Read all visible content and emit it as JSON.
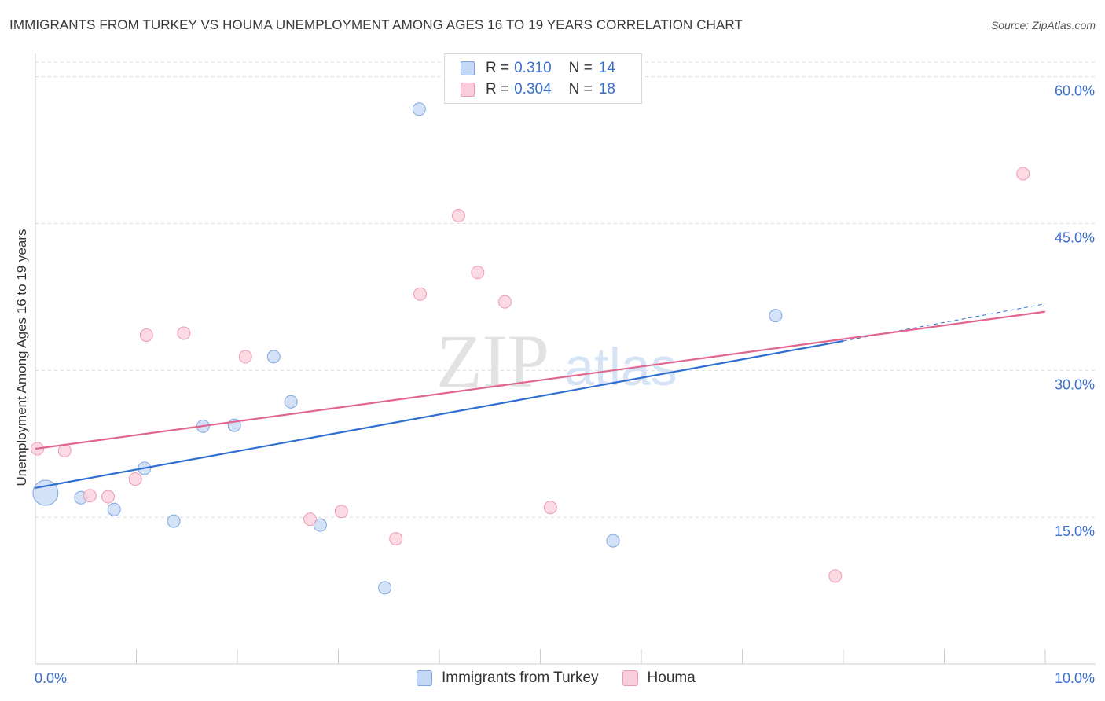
{
  "title": "IMMIGRANTS FROM TURKEY VS HOUMA UNEMPLOYMENT AMONG AGES 16 TO 19 YEARS CORRELATION CHART",
  "source": "Source: ZipAtlas.com",
  "watermark": {
    "zip": "ZIP",
    "atlas": "atlas"
  },
  "legend": {
    "rows": [
      {
        "r_label": "R =",
        "r_value": "0.310",
        "n_label": "N =",
        "n_value": "14"
      },
      {
        "r_label": "R =",
        "r_value": "0.304",
        "n_label": "N =",
        "n_value": "18"
      }
    ]
  },
  "bottom_legend": {
    "series1": "Immigrants from Turkey",
    "series2": "Houma"
  },
  "colors": {
    "blue_fill": "#c5d8f5",
    "blue_stroke": "#7ea6e0",
    "blue_line": "#2f6fd1",
    "pink_fill": "#f9cdd9",
    "pink_stroke": "#ee9ab3",
    "pink_line": "#e0668f",
    "axis_text": "#3a6fd0",
    "grid": "#dddddd"
  },
  "chart_data": {
    "type": "scatter",
    "title": "IMMIGRANTS FROM TURKEY VS HOUMA UNEMPLOYMENT AMONG AGES 16 TO 19 YEARS CORRELATION CHART",
    "xlabel": "",
    "ylabel": "Unemployment Among Ages 16 to 19 years",
    "xlim": [
      0,
      10
    ],
    "ylim": [
      0,
      61.5
    ],
    "x_tick_labels": [
      "0.0%",
      "10.0%"
    ],
    "y_ticks": [
      15,
      30,
      45,
      60
    ],
    "y_tick_labels": [
      "15.0%",
      "30.0%",
      "45.0%",
      "60.0%"
    ],
    "series": [
      {
        "name": "Immigrants from Turkey",
        "r": 0.31,
        "n": 14,
        "points": [
          {
            "x": 0.1,
            "y": 17.5,
            "size": "large"
          },
          {
            "x": 0.45,
            "y": 17.0
          },
          {
            "x": 0.78,
            "y": 15.8
          },
          {
            "x": 1.08,
            "y": 20.0
          },
          {
            "x": 1.37,
            "y": 14.6
          },
          {
            "x": 1.66,
            "y": 24.3
          },
          {
            "x": 1.97,
            "y": 24.4
          },
          {
            "x": 2.36,
            "y": 31.4
          },
          {
            "x": 2.53,
            "y": 26.8
          },
          {
            "x": 2.82,
            "y": 14.2
          },
          {
            "x": 3.46,
            "y": 7.8
          },
          {
            "x": 3.8,
            "y": 56.7
          },
          {
            "x": 5.72,
            "y": 12.6
          },
          {
            "x": 7.33,
            "y": 35.6
          }
        ],
        "trend": {
          "x": [
            0,
            8.0
          ],
          "y": [
            18.0,
            33.0
          ]
        }
      },
      {
        "name": "Houma",
        "r": 0.304,
        "n": 18,
        "points": [
          {
            "x": 0.02,
            "y": 22.0
          },
          {
            "x": 0.29,
            "y": 21.8
          },
          {
            "x": 0.54,
            "y": 17.2
          },
          {
            "x": 0.72,
            "y": 17.1
          },
          {
            "x": 0.99,
            "y": 18.9
          },
          {
            "x": 1.1,
            "y": 33.6
          },
          {
            "x": 1.47,
            "y": 33.8
          },
          {
            "x": 2.08,
            "y": 31.4
          },
          {
            "x": 2.72,
            "y": 14.8
          },
          {
            "x": 3.03,
            "y": 15.6
          },
          {
            "x": 3.57,
            "y": 12.8
          },
          {
            "x": 3.81,
            "y": 37.8
          },
          {
            "x": 4.19,
            "y": 45.8
          },
          {
            "x": 4.38,
            "y": 40.0
          },
          {
            "x": 4.65,
            "y": 37.0
          },
          {
            "x": 5.1,
            "y": 16.0
          },
          {
            "x": 7.92,
            "y": 9.0
          },
          {
            "x": 9.78,
            "y": 50.1
          }
        ],
        "trend": {
          "x": [
            0,
            10.0
          ],
          "y": [
            22.0,
            36.0
          ]
        }
      }
    ],
    "blue_trend_extension": {
      "x": [
        8.0,
        10.0
      ],
      "y": [
        33.0,
        36.8
      ],
      "style": "dashed"
    }
  }
}
